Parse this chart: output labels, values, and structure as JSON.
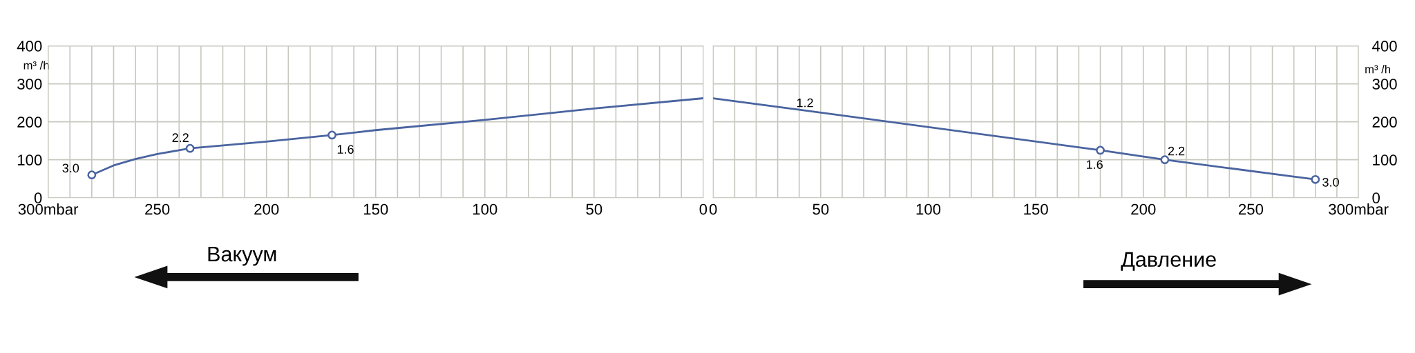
{
  "chart_data": [
    {
      "type": "line",
      "ylabel": "m³ /h",
      "xlim": [
        300,
        0
      ],
      "ylim": [
        0,
        400
      ],
      "yticks": [
        0,
        100,
        200,
        300,
        400
      ],
      "xticks": [
        {
          "value": 300,
          "label": "300mbar"
        },
        {
          "value": 290,
          "label": null
        },
        {
          "value": 280,
          "label": null
        },
        {
          "value": 270,
          "label": null
        },
        {
          "value": 260,
          "label": null
        },
        250,
        {
          "value": 240,
          "label": null
        },
        {
          "value": 230,
          "label": null
        },
        {
          "value": 220,
          "label": null
        },
        {
          "value": 210,
          "label": null
        },
        200,
        {
          "value": 190,
          "label": null
        },
        {
          "value": 180,
          "label": null
        },
        {
          "value": 170,
          "label": null
        },
        {
          "value": 160,
          "label": null
        },
        150,
        {
          "value": 140,
          "label": null
        },
        {
          "value": 130,
          "label": null
        },
        {
          "value": 120,
          "label": null
        },
        {
          "value": 110,
          "label": null
        },
        100,
        {
          "value": 90,
          "label": null
        },
        {
          "value": 80,
          "label": null
        },
        {
          "value": 70,
          "label": null
        },
        {
          "value": 60,
          "label": null
        },
        50,
        {
          "value": 40,
          "label": null
        },
        {
          "value": 30,
          "label": null
        },
        {
          "value": 20,
          "label": null
        },
        {
          "value": 10,
          "label": null
        },
        0
      ],
      "grid": true,
      "series": [
        {
          "color": "#4a64a0",
          "marker": "none",
          "x": [
            280,
            270,
            260,
            250,
            240,
            235,
            200,
            170,
            150,
            100,
            50,
            0
          ],
          "values": [
            60,
            85,
            102,
            115,
            125,
            130,
            148,
            165,
            178,
            205,
            235,
            262
          ]
        },
        {
          "type": "scatter",
          "color": "#4a64a0",
          "marker": "circle",
          "x": [
            280,
            235,
            170
          ],
          "values": [
            60,
            130,
            165
          ]
        }
      ],
      "annotations": [
        {
          "text": "3.0",
          "x": 280,
          "y": 60
        },
        {
          "text": "2.2",
          "x": 235,
          "y": 130
        },
        {
          "text": "1.6",
          "x": 170,
          "y": 165
        },
        "Вакуум"
      ]
    },
    {
      "type": "line",
      "ylabel": "m³ /h",
      "xlim": [
        0,
        300
      ],
      "ylim": [
        0,
        400
      ],
      "yticks": [
        0,
        100,
        200,
        300,
        400
      ],
      "xticks": [
        0,
        {
          "value": 10,
          "label": null
        },
        {
          "value": 20,
          "label": null
        },
        {
          "value": 30,
          "label": null
        },
        {
          "value": 40,
          "label": null
        },
        50,
        {
          "value": 60,
          "label": null
        },
        {
          "value": 70,
          "label": null
        },
        {
          "value": 80,
          "label": null
        },
        {
          "value": 90,
          "label": null
        },
        100,
        {
          "value": 110,
          "label": null
        },
        {
          "value": 120,
          "label": null
        },
        {
          "value": 130,
          "label": null
        },
        {
          "value": 140,
          "label": null
        },
        150,
        {
          "value": 160,
          "label": null
        },
        {
          "value": 170,
          "label": null
        },
        {
          "value": 180,
          "label": null
        },
        {
          "value": 190,
          "label": null
        },
        200,
        {
          "value": 210,
          "label": null
        },
        {
          "value": 220,
          "label": null
        },
        {
          "value": 230,
          "label": null
        },
        {
          "value": 240,
          "label": null
        },
        250,
        {
          "value": 260,
          "label": null
        },
        {
          "value": 270,
          "label": null
        },
        {
          "value": 280,
          "label": null
        },
        {
          "value": 290,
          "label": null
        },
        {
          "value": 300,
          "label": "300mbar"
        }
      ],
      "grid": true,
      "series": [
        {
          "color": "#4a64a0",
          "marker": "none",
          "x": [
            0,
            40,
            180,
            210,
            280
          ],
          "values": [
            262,
            232,
            125,
            100,
            48
          ]
        },
        {
          "type": "scatter",
          "color": "#4a64a0",
          "marker": "circle",
          "x": [
            180,
            210,
            280
          ],
          "values": [
            125,
            100,
            48
          ]
        }
      ],
      "annotations": [
        {
          "text": "1.2",
          "x": 40,
          "y": 232
        },
        {
          "text": "1.6",
          "x": 180,
          "y": 125
        },
        {
          "text": "2.2",
          "x": 210,
          "y": 100
        },
        {
          "text": "3.0",
          "x": 280,
          "y": 48
        },
        "Давление"
      ]
    }
  ]
}
